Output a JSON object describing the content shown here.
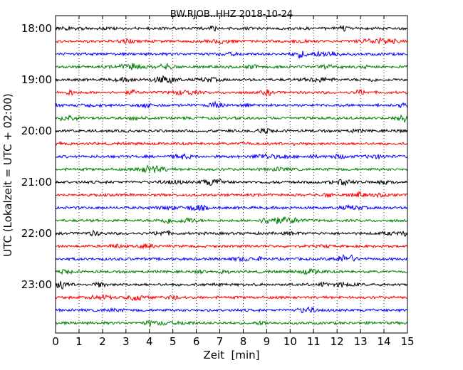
{
  "chart_data": {
    "type": "line",
    "title": "BW.RJOB..HHZ 2018-10-24",
    "xlabel": "Zeit  [min]",
    "ylabel": "UTC (Lokalzeit = UTC + 02:00)",
    "xlim": [
      0,
      15
    ],
    "x_ticks": [
      "0",
      "1",
      "2",
      "3",
      "4",
      "5",
      "6",
      "7",
      "8",
      "9",
      "10",
      "11",
      "12",
      "13",
      "14",
      "15"
    ],
    "y_ticks": [
      "18:00",
      "19:00",
      "20:00",
      "21:00",
      "22:00",
      "23:00"
    ],
    "traces_per_hour": 4,
    "minutes_per_trace": 15,
    "color_cycle": [
      "#000000",
      "#ff0000",
      "#0000ff",
      "#008000"
    ],
    "grid": "vertical dotted lines at each minute",
    "series": [
      {
        "start": "18:00"
      },
      {
        "start": "18:15"
      },
      {
        "start": "18:30"
      },
      {
        "start": "18:45"
      },
      {
        "start": "19:00"
      },
      {
        "start": "19:15"
      },
      {
        "start": "19:30"
      },
      {
        "start": "19:45"
      },
      {
        "start": "20:00"
      },
      {
        "start": "20:15"
      },
      {
        "start": "20:30"
      },
      {
        "start": "20:45"
      },
      {
        "start": "21:00"
      },
      {
        "start": "21:15"
      },
      {
        "start": "21:30"
      },
      {
        "start": "21:45"
      },
      {
        "start": "22:00"
      },
      {
        "start": "22:15"
      },
      {
        "start": "22:30"
      },
      {
        "start": "22:45"
      },
      {
        "start": "23:00"
      },
      {
        "start": "23:15"
      },
      {
        "start": "23:30"
      },
      {
        "start": "23:45"
      }
    ]
  }
}
